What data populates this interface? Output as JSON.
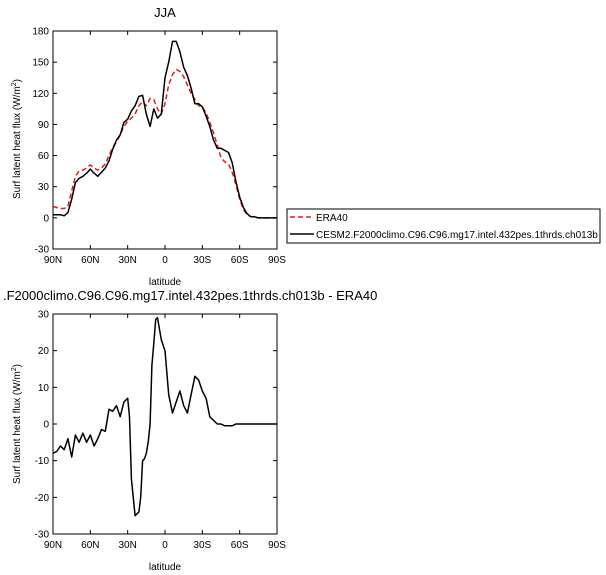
{
  "chart_data": [
    {
      "type": "line",
      "title": "JJA",
      "xlabel": "latitude",
      "ylabel": "Surf latent heat flux (W/m",
      "ylabel_sup": "2",
      "ylabel_close": ")",
      "xlim": [
        90,
        -90
      ],
      "ylim": [
        -30,
        180
      ],
      "xticks": [
        90,
        60,
        30,
        0,
        -30,
        -60,
        -90
      ],
      "xtick_labels": [
        "90N",
        "60N",
        "30N",
        "0",
        "30S",
        "60S",
        "90S"
      ],
      "yticks": [
        -30,
        0,
        30,
        60,
        90,
        120,
        150,
        180
      ],
      "ytick_labels": [
        "-30",
        "0",
        "30",
        "60",
        "90",
        "120",
        "150",
        "180"
      ],
      "legend_position": "right, outside plot",
      "series": [
        {
          "name": "ERA40",
          "color": "#e41a1c",
          "dash": true,
          "x": [
            90,
            87,
            84,
            81,
            78,
            75,
            72,
            69,
            66,
            63,
            60,
            57,
            54,
            51,
            48,
            45,
            42,
            39,
            36,
            33,
            30,
            27,
            24,
            21,
            18,
            15,
            12,
            9,
            6,
            3,
            0,
            -3,
            -6,
            -9,
            -12,
            -15,
            -18,
            -21,
            -24,
            -27,
            -30,
            -33,
            -36,
            -39,
            -42,
            -45,
            -48,
            -51,
            -54,
            -57,
            -60,
            -63,
            -66,
            -69,
            -72,
            -75,
            -78,
            -81,
            -84,
            -87,
            -90
          ],
          "y": [
            11,
            10,
            9,
            9,
            11,
            26,
            40,
            45,
            46,
            48,
            51,
            48,
            46,
            48,
            52,
            60,
            68,
            73,
            80,
            88,
            93,
            96,
            100,
            108,
            112,
            108,
            115,
            114,
            105,
            100,
            110,
            128,
            138,
            143,
            141,
            136,
            128,
            120,
            114,
            108,
            107,
            101,
            92,
            82,
            70,
            58,
            54,
            52,
            44,
            32,
            18,
            8,
            3,
            1,
            1,
            0,
            0,
            0,
            0,
            0,
            0
          ]
        },
        {
          "name": "CESM2.F2000climo.C96.C96.mg17.intel.432pes.1thrds.ch013b",
          "color": "#000000",
          "dash": false,
          "x": [
            90,
            87,
            84,
            81,
            78,
            75,
            72,
            69,
            66,
            63,
            60,
            57,
            54,
            51,
            48,
            45,
            42,
            39,
            36,
            33,
            30,
            27,
            24,
            21,
            18,
            15,
            12,
            9,
            6,
            3,
            0,
            -3,
            -6,
            -9,
            -12,
            -15,
            -18,
            -21,
            -24,
            -27,
            -30,
            -33,
            -36,
            -39,
            -42,
            -45,
            -48,
            -51,
            -54,
            -57,
            -60,
            -63,
            -66,
            -69,
            -72,
            -75,
            -78,
            -81,
            -84,
            -87,
            -90
          ],
          "y": [
            3,
            3,
            3,
            2,
            5,
            18,
            34,
            38,
            40,
            43,
            47,
            43,
            40,
            44,
            48,
            55,
            66,
            75,
            80,
            92,
            95,
            103,
            108,
            117,
            118,
            100,
            88,
            105,
            96,
            100,
            135,
            150,
            170,
            170,
            160,
            145,
            137,
            125,
            110,
            110,
            107,
            98,
            88,
            75,
            67,
            67,
            65,
            63,
            53,
            35,
            20,
            10,
            4,
            1,
            1,
            0,
            0,
            0,
            0,
            0,
            0
          ]
        }
      ],
      "legend": [
        {
          "label": "ERA40"
        },
        {
          "label": "CESM2.F2000climo.C96.C96.mg17.intel.432pes.1thrds.ch013b"
        }
      ]
    },
    {
      "type": "line",
      "title": ".F2000climo.C96.C96.mg17.intel.432pes.1thrds.ch013b - ERA40",
      "xlabel": "latitude",
      "ylabel": "Surf latent heat flux (W/m",
      "ylabel_sup": "2",
      "ylabel_close": ")",
      "xlim": [
        90,
        -90
      ],
      "ylim": [
        -30,
        30
      ],
      "xticks": [
        90,
        60,
        30,
        0,
        -30,
        -60,
        -90
      ],
      "xtick_labels": [
        "90N",
        "60N",
        "30N",
        "0",
        "30S",
        "60S",
        "90S"
      ],
      "yticks": [
        -30,
        -20,
        -10,
        0,
        10,
        20,
        30
      ],
      "ytick_labels": [
        "-30",
        "-20",
        "-10",
        "0",
        "10",
        "20",
        "30"
      ],
      "series": [
        {
          "color": "#000000",
          "x": [
            90,
            87,
            84,
            81,
            78,
            75,
            72,
            69,
            66,
            63,
            60,
            57,
            54,
            51,
            48,
            45,
            42,
            39,
            36,
            33,
            30,
            28.5,
            27,
            24,
            21,
            19.5,
            18,
            16.5,
            15,
            13.5,
            12,
            10.5,
            9,
            7.5,
            6,
            3,
            0,
            -3,
            -6,
            -9,
            -12,
            -15,
            -18,
            -21,
            -24,
            -27,
            -30,
            -33,
            -36,
            -39,
            -42,
            -45,
            -48,
            -51,
            -54,
            -57,
            -60,
            -63,
            -66,
            -69,
            -72,
            -75,
            -78,
            -81,
            -84,
            -87,
            -90
          ],
          "y": [
            -8,
            -7.5,
            -6,
            -7,
            -4,
            -9,
            -3,
            -5,
            -2.5,
            -5,
            -3,
            -6,
            -4,
            -1.5,
            -2,
            4,
            3.5,
            5,
            2,
            6,
            7,
            2,
            -15,
            -25,
            -24,
            -20,
            -10,
            -9.5,
            -8,
            -5,
            0,
            16,
            22,
            28.5,
            29,
            23,
            20,
            8,
            3,
            6,
            9,
            5,
            3,
            8,
            13,
            12,
            9,
            7,
            2,
            1,
            0,
            0,
            -0.5,
            -0.5,
            -0.5,
            0,
            0,
            0,
            0,
            0,
            0,
            0,
            0,
            0,
            0,
            0,
            0
          ]
        }
      ]
    }
  ]
}
